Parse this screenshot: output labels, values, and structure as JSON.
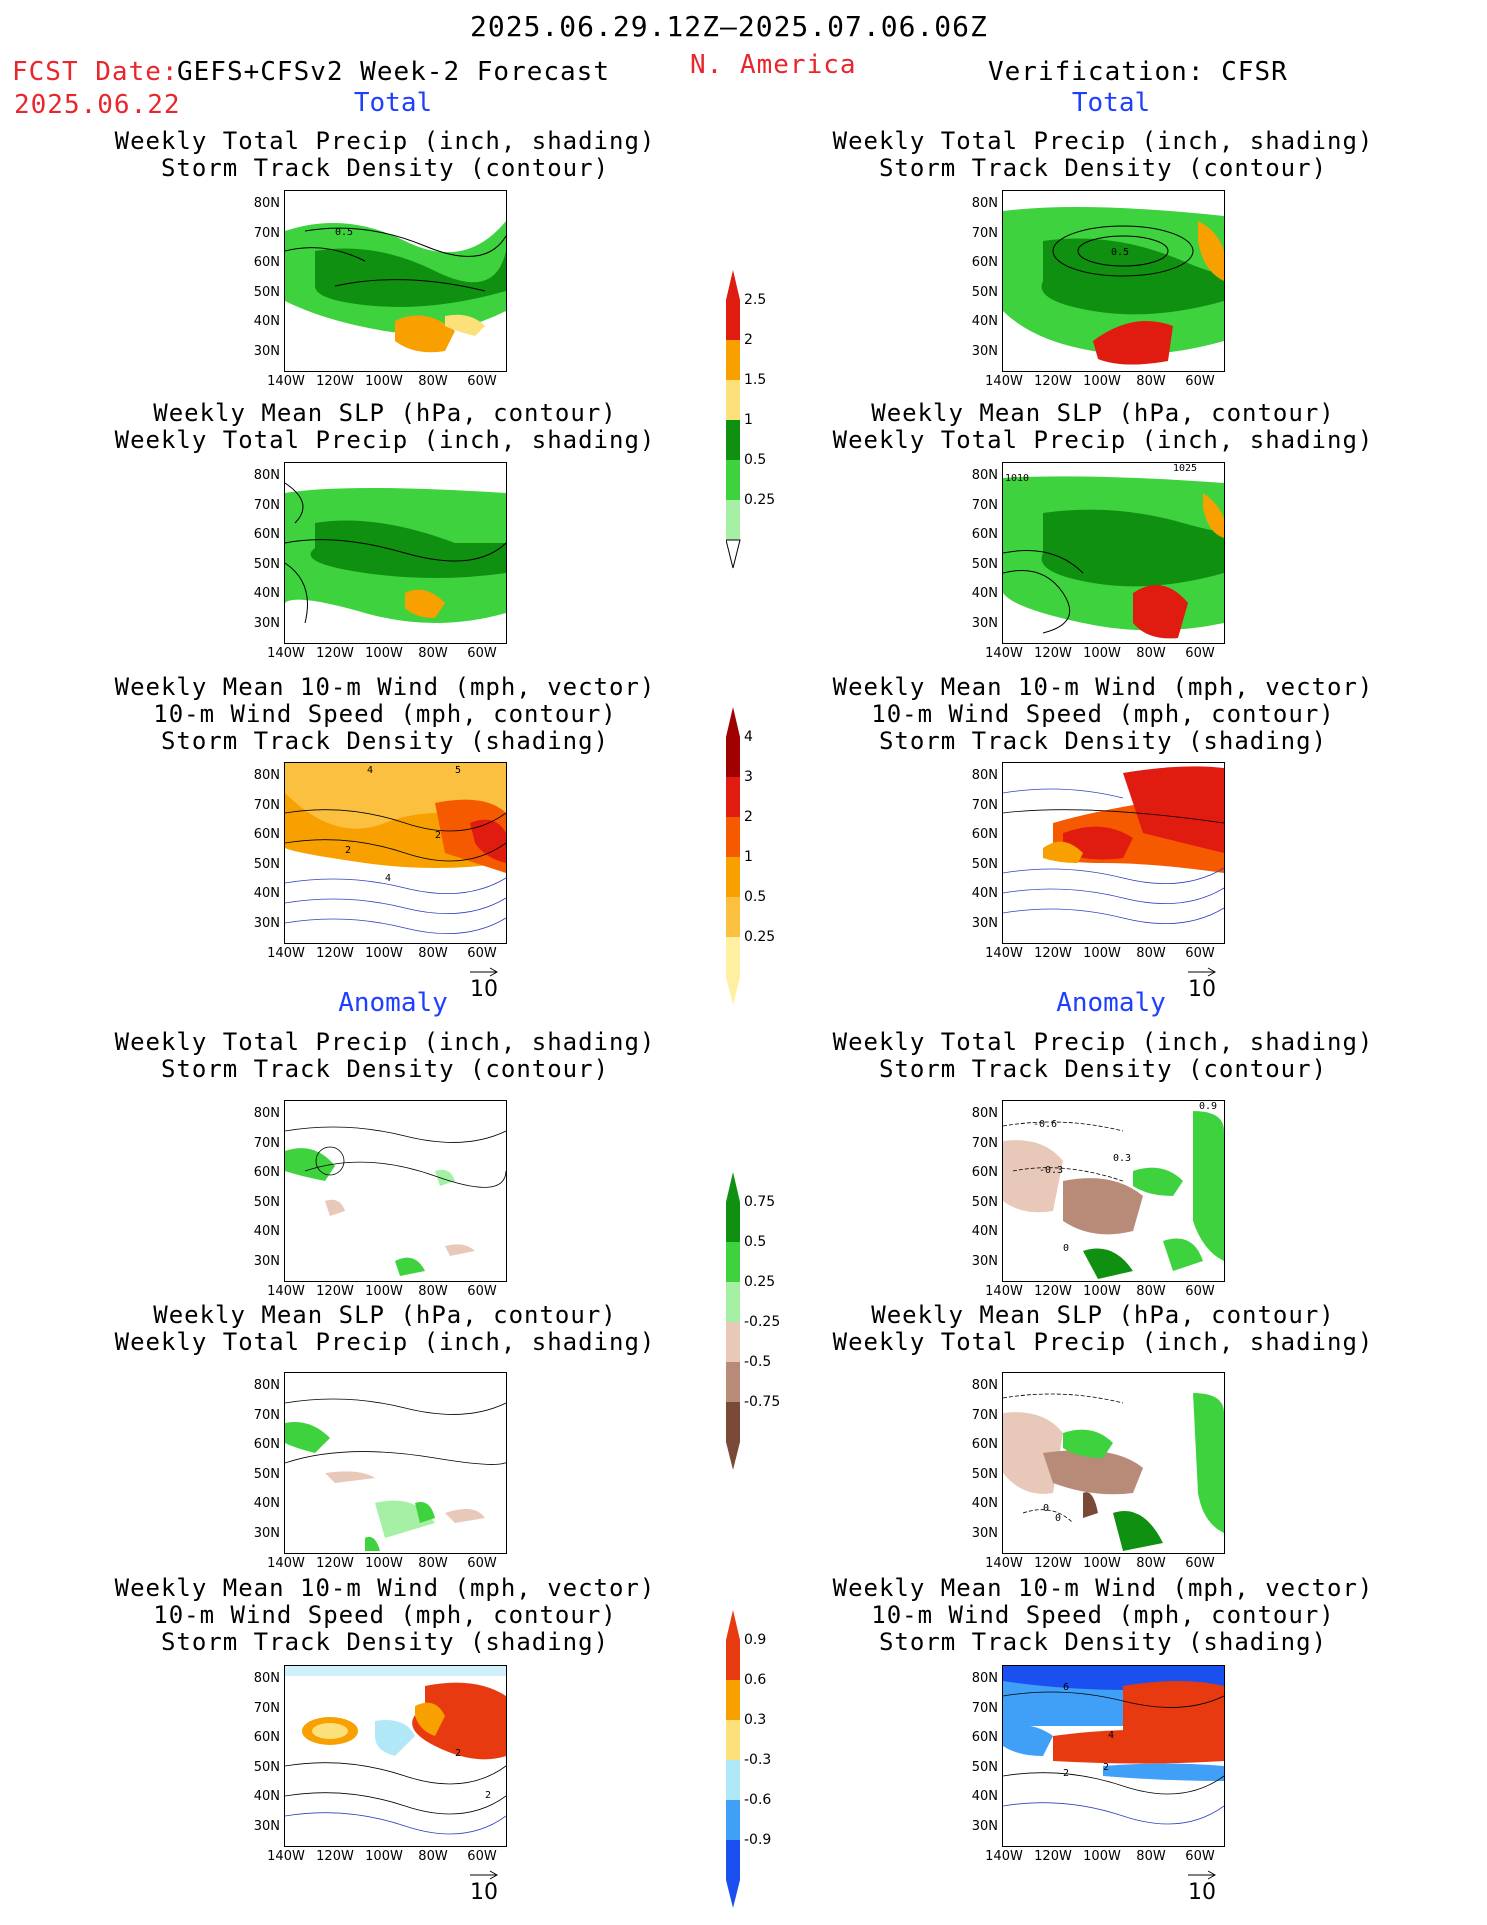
{
  "header": {
    "date_range": "2025.06.29.12Z—2025.07.06.06Z",
    "fcst_label": "FCST Date:",
    "fcst_date": "2025.06.22",
    "model": "GEFS+CFSv2 Week-2 Forecast",
    "region": "N. America",
    "verification": "Verification: CFSR"
  },
  "sections": {
    "total": "Total",
    "anomaly": "Anomaly"
  },
  "titles": {
    "precip_track": "Weekly Total Precip (inch, shading)\nStorm Track Density (contour)",
    "slp_precip": "Weekly Mean SLP (hPa, contour)\nWeekly Total Precip (inch, shading)",
    "wind_track": "Weekly Mean 10-m Wind (mph, vector)\n10-m Wind Speed (mph, contour)\nStorm Track Density (shading)"
  },
  "axes": {
    "lat": [
      "80N",
      "70N",
      "60N",
      "50N",
      "40N",
      "30N"
    ],
    "lon": [
      "140W",
      "120W",
      "100W",
      "80W",
      "60W"
    ]
  },
  "vector_ref": "10",
  "colorbars": {
    "precip_total": {
      "labels": [
        "2.5",
        "2",
        "1.5",
        "1",
        "0.5",
        "0.25"
      ],
      "colors": [
        "#e01b10",
        "#f7a000",
        "#fce07a",
        "#109010",
        "#3ed23e",
        "#a6f0a6"
      ]
    },
    "track_total": {
      "labels": [
        "4",
        "3",
        "2",
        "1",
        "0.5",
        "0.25"
      ],
      "colors": [
        "#a00000",
        "#e01b10",
        "#f55a00",
        "#f7a000",
        "#fbc040",
        "#fef0a0"
      ]
    },
    "precip_anom": {
      "labels": [
        "0.75",
        "0.5",
        "0.25",
        "-0.25",
        "-0.5",
        "-0.75"
      ],
      "colors": [
        "#109010",
        "#3ed23e",
        "#a6f0a6",
        "#e8c8b8",
        "#b88a78",
        "#7a4a38"
      ]
    },
    "track_anom": {
      "labels": [
        "0.9",
        "0.6",
        "0.3",
        "-0.3",
        "-0.6",
        "-0.9"
      ],
      "colors": [
        "#e83a10",
        "#f7a000",
        "#fce07a",
        "#b0e8f8",
        "#40a0f8",
        "#1a50f0"
      ]
    }
  },
  "contour_labels": {
    "fcst_precip_total": "0.5",
    "ver_precip_total": "0.5",
    "ver_slp_total": [
      "1010",
      "1025"
    ],
    "fcst_wind_total": [
      "4",
      "5",
      "2",
      "2",
      "4"
    ],
    "ver_precip_anom": [
      "-0.6",
      "0.9",
      "-0.3",
      "0.3",
      "0"
    ],
    "ver_slp_anom": [
      "0",
      "0"
    ],
    "fcst_wind_anom": [
      "2",
      "2"
    ],
    "ver_wind_anom": [
      "6",
      "4",
      "2",
      "2"
    ]
  }
}
